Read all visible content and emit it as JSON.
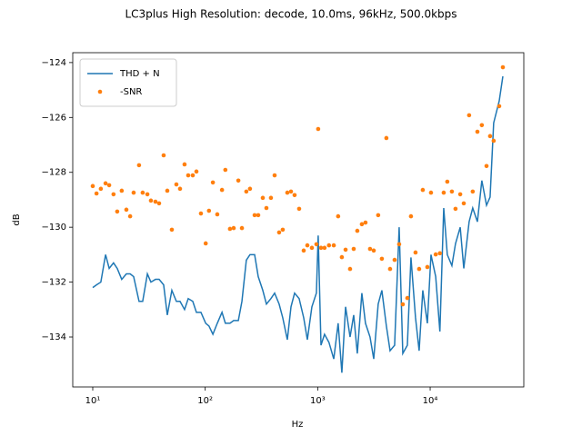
{
  "chart_data": {
    "type": "line",
    "title": "LC3plus High Resolution: decode, 10.0ms, 96kHz, 500.0kbps",
    "x_label": "Hz",
    "y_label": "dB",
    "x_scale": "log",
    "xlim": [
      6.64,
      68000
    ],
    "ylim": [
      -135.82,
      -123.64
    ],
    "xticks": [
      {
        "value": 10,
        "label": "10¹"
      },
      {
        "value": 100,
        "label": "10²"
      },
      {
        "value": 1000,
        "label": "10³"
      },
      {
        "value": 10000,
        "label": "10⁴"
      }
    ],
    "yticks": [
      {
        "value": -124,
        "label": "−124"
      },
      {
        "value": -126,
        "label": "−126"
      },
      {
        "value": -128,
        "label": "−128"
      },
      {
        "value": -130,
        "label": "−130"
      },
      {
        "value": -132,
        "label": "−132"
      },
      {
        "value": -134,
        "label": "−134"
      }
    ],
    "legend": "upper left",
    "x": [
      10,
      10.8,
      11.8,
      13.0,
      14.0,
      15.3,
      16.5,
      18.1,
      19.9,
      21.5,
      23.1,
      25.8,
      27.8,
      30.6,
      32.9,
      36.1,
      38.9,
      42.7,
      46.0,
      50.5,
      55.4,
      59.7,
      65.5,
      70.6,
      77.5,
      83.5,
      91.6,
      101,
      108,
      117,
      128,
      141,
      151,
      166,
      179,
      197,
      212,
      232,
      250,
      275,
      296,
      325,
      350,
      384,
      414,
      454,
      489,
      537,
      579,
      623,
      684,
      751,
      809,
      888,
      974,
      1010,
      1070,
      1150,
      1260,
      1390,
      1520,
      1640,
      1770,
      1940,
      2090,
      2250,
      2470,
      2660,
      2920,
      3150,
      3450,
      3720,
      4080,
      4400,
      4830,
      5300,
      5710,
      6270,
      6750,
      7410,
      7980,
      8600,
      9440,
      10170,
      11200,
      12200,
      13200,
      14200,
      15600,
      16800,
      18500,
      19900,
      22200,
      23900,
      26300,
      28800,
      31700,
      34100,
      36700,
      41100,
      44300
    ],
    "series": [
      {
        "name": "THD + N",
        "mode": "line",
        "color": "#1f77b4",
        "values": [
          -132.2,
          -132.1,
          -132.0,
          -131.0,
          -131.5,
          -131.3,
          -131.5,
          -131.9,
          -131.7,
          -131.7,
          -131.8,
          -132.7,
          -132.7,
          -131.7,
          -132.0,
          -131.9,
          -131.9,
          -132.1,
          -133.2,
          -132.3,
          -132.7,
          -132.7,
          -133.0,
          -132.6,
          -132.7,
          -133.1,
          -133.1,
          -133.5,
          -133.6,
          -133.9,
          -133.5,
          -133.1,
          -133.5,
          -133.5,
          -133.4,
          -133.4,
          -132.7,
          -131.2,
          -131.0,
          -131.0,
          -131.8,
          -132.3,
          -132.8,
          -132.6,
          -132.4,
          -132.8,
          -133.3,
          -134.1,
          -132.9,
          -132.4,
          -132.6,
          -133.3,
          -134.1,
          -132.9,
          -132.4,
          -130.3,
          -134.3,
          -133.9,
          -134.2,
          -134.8,
          -133.5,
          -135.3,
          -132.9,
          -134.0,
          -133.2,
          -134.6,
          -132.4,
          -133.5,
          -134.0,
          -134.8,
          -132.8,
          -132.3,
          -133.6,
          -134.5,
          -134.3,
          -130.0,
          -134.6,
          -134.3,
          -131.1,
          -133.3,
          -134.5,
          -132.3,
          -133.5,
          -131.0,
          -131.8,
          -133.8,
          -129.3,
          -131.0,
          -131.4,
          -130.6,
          -130.0,
          -131.5,
          -129.8,
          -129.3,
          -129.8,
          -128.3,
          -129.2,
          -128.9,
          -126.2,
          -125.4,
          -124.5
        ]
      },
      {
        "name": "-SNR",
        "mode": "markers",
        "color": "#ff7f0e",
        "values": [
          -128.5,
          -128.77,
          -128.6,
          -128.4,
          -128.47,
          -128.8,
          -129.43,
          -128.67,
          -129.36,
          -129.6,
          -128.74,
          -127.74,
          -128.74,
          -128.8,
          -129.03,
          -129.07,
          -129.13,
          -127.38,
          -128.67,
          -130.09,
          -128.44,
          -128.6,
          -127.71,
          -128.11,
          -128.11,
          -127.97,
          -129.5,
          -130.59,
          -129.4,
          -128.37,
          -129.53,
          -128.64,
          -127.91,
          -130.06,
          -130.03,
          -128.3,
          -130.03,
          -128.7,
          -128.6,
          -129.56,
          -129.56,
          -128.93,
          -129.3,
          -128.93,
          -128.11,
          -130.19,
          -130.09,
          -128.74,
          -128.7,
          -128.83,
          -129.33,
          -130.85,
          -130.66,
          -130.75,
          -130.62,
          -126.42,
          -130.75,
          -130.75,
          -130.66,
          -130.66,
          -129.6,
          -131.09,
          -130.82,
          -131.52,
          -130.79,
          -130.13,
          -129.89,
          -129.83,
          -130.79,
          -130.85,
          -129.56,
          -131.15,
          -126.75,
          -131.52,
          -131.19,
          -130.62,
          -132.81,
          -132.58,
          -129.6,
          -130.92,
          -131.52,
          -128.64,
          -131.45,
          -128.74,
          -130.99,
          -130.95,
          -128.74,
          -128.34,
          -128.7,
          -129.33,
          -128.8,
          -129.13,
          -125.92,
          -128.7,
          -126.52,
          -126.28,
          -127.77,
          -126.68,
          -126.85,
          -125.59,
          -124.17
        ]
      }
    ]
  }
}
